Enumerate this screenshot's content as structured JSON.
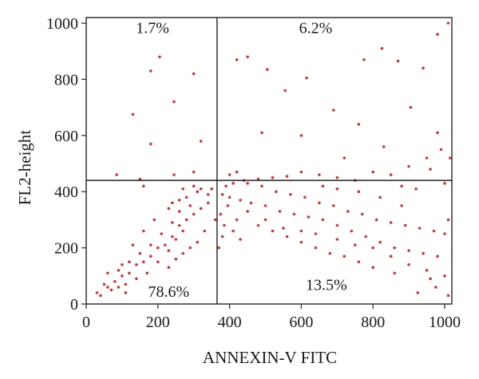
{
  "chart_data": {
    "type": "scatter",
    "title": "",
    "xlabel": "ANNEXIN-V FITC",
    "ylabel": "FL2-height",
    "xlim": [
      0,
      1020
    ],
    "ylim": [
      0,
      1020
    ],
    "xticks": [
      0,
      200,
      400,
      600,
      800,
      1000
    ],
    "yticks": [
      0,
      200,
      400,
      600,
      800,
      1000
    ],
    "gate": {
      "x": 365,
      "y": 440
    },
    "quadrants": [
      {
        "position": "top-left",
        "label": "1.7%",
        "x": 185,
        "y": 985
      },
      {
        "position": "top-right",
        "label": "6.2%",
        "x": 640,
        "y": 985
      },
      {
        "position": "bottom-left",
        "label": "78.6%",
        "x": 230,
        "y": 45
      },
      {
        "position": "bottom-right",
        "label": "13.5%",
        "x": 670,
        "y": 70
      }
    ],
    "grid": false,
    "point_color": "#c0161b",
    "points": [
      [
        205,
        880
      ],
      [
        180,
        830
      ],
      [
        245,
        720
      ],
      [
        130,
        675
      ],
      [
        85,
        460
      ],
      [
        150,
        445
      ],
      [
        160,
        420
      ],
      [
        180,
        570
      ],
      [
        320,
        580
      ],
      [
        300,
        820
      ],
      [
        450,
        880
      ],
      [
        505,
        835
      ],
      [
        555,
        760
      ],
      [
        615,
        805
      ],
      [
        775,
        870
      ],
      [
        825,
        910
      ],
      [
        870,
        865
      ],
      [
        940,
        840
      ],
      [
        980,
        960
      ],
      [
        1010,
        1000
      ],
      [
        420,
        870
      ],
      [
        690,
        690
      ],
      [
        760,
        640
      ],
      [
        905,
        700
      ],
      [
        830,
        560
      ],
      [
        980,
        610
      ],
      [
        1015,
        520
      ],
      [
        600,
        600
      ],
      [
        490,
        610
      ],
      [
        420,
        470
      ],
      [
        720,
        520
      ],
      [
        960,
        480
      ],
      [
        245,
        460
      ],
      [
        300,
        470
      ],
      [
        60,
        60
      ],
      [
        110,
        70
      ],
      [
        140,
        90
      ],
      [
        170,
        110
      ],
      [
        200,
        150
      ],
      [
        230,
        190
      ],
      [
        250,
        230
      ],
      [
        270,
        260
      ],
      [
        120,
        150
      ],
      [
        150,
        180
      ],
      [
        180,
        210
      ],
      [
        210,
        250
      ],
      [
        240,
        290
      ],
      [
        260,
        330
      ],
      [
        290,
        350
      ],
      [
        90,
        120
      ],
      [
        130,
        210
      ],
      [
        160,
        260
      ],
      [
        190,
        300
      ],
      [
        230,
        340
      ],
      [
        280,
        380
      ],
      [
        320,
        410
      ],
      [
        80,
        80
      ],
      [
        100,
        100
      ],
      [
        120,
        110
      ],
      [
        140,
        140
      ],
      [
        160,
        150
      ],
      [
        180,
        170
      ],
      [
        200,
        200
      ],
      [
        220,
        210
      ],
      [
        240,
        240
      ],
      [
        260,
        280
      ],
      [
        280,
        300
      ],
      [
        300,
        320
      ],
      [
        320,
        340
      ],
      [
        340,
        360
      ],
      [
        360,
        300
      ],
      [
        330,
        260
      ],
      [
        310,
        220
      ],
      [
        290,
        200
      ],
      [
        270,
        180
      ],
      [
        250,
        160
      ],
      [
        230,
        130
      ],
      [
        350,
        410
      ],
      [
        340,
        390
      ],
      [
        310,
        400
      ],
      [
        300,
        420
      ],
      [
        270,
        410
      ],
      [
        260,
        370
      ],
      [
        240,
        360
      ],
      [
        380,
        390
      ],
      [
        400,
        380
      ],
      [
        430,
        370
      ],
      [
        460,
        360
      ],
      [
        500,
        350
      ],
      [
        540,
        330
      ],
      [
        580,
        320
      ],
      [
        620,
        310
      ],
      [
        660,
        300
      ],
      [
        700,
        280
      ],
      [
        740,
        260
      ],
      [
        780,
        240
      ],
      [
        820,
        220
      ],
      [
        860,
        200
      ],
      [
        900,
        190
      ],
      [
        940,
        180
      ],
      [
        980,
        170
      ],
      [
        420,
        300
      ],
      [
        480,
        280
      ],
      [
        520,
        260
      ],
      [
        560,
        240
      ],
      [
        600,
        220
      ],
      [
        640,
        200
      ],
      [
        680,
        180
      ],
      [
        720,
        170
      ],
      [
        760,
        150
      ],
      [
        800,
        130
      ],
      [
        860,
        110
      ],
      [
        390,
        420
      ],
      [
        410,
        430
      ],
      [
        450,
        430
      ],
      [
        490,
        420
      ],
      [
        530,
        400
      ],
      [
        570,
        390
      ],
      [
        610,
        380
      ],
      [
        650,
        360
      ],
      [
        690,
        350
      ],
      [
        730,
        330
      ],
      [
        770,
        320
      ],
      [
        810,
        300
      ],
      [
        850,
        290
      ],
      [
        890,
        280
      ],
      [
        930,
        270
      ],
      [
        970,
        260
      ],
      [
        1000,
        250
      ],
      [
        450,
        330
      ],
      [
        500,
        300
      ],
      [
        550,
        270
      ],
      [
        600,
        260
      ],
      [
        640,
        250
      ],
      [
        700,
        230
      ],
      [
        750,
        210
      ],
      [
        800,
        200
      ],
      [
        850,
        170
      ],
      [
        900,
        140
      ],
      [
        950,
        120
      ],
      [
        600,
        470
      ],
      [
        650,
        460
      ],
      [
        700,
        450
      ],
      [
        750,
        440
      ],
      [
        800,
        470
      ],
      [
        850,
        460
      ],
      [
        900,
        490
      ],
      [
        950,
        520
      ],
      [
        990,
        550
      ],
      [
        560,
        455
      ],
      [
        520,
        450
      ],
      [
        480,
        445
      ],
      [
        440,
        440
      ],
      [
        400,
        460
      ],
      [
        30,
        40
      ],
      [
        40,
        30
      ],
      [
        50,
        70
      ],
      [
        70,
        50
      ],
      [
        60,
        110
      ],
      [
        90,
        60
      ],
      [
        100,
        140
      ],
      [
        110,
        40
      ],
      [
        370,
        200
      ],
      [
        380,
        240
      ],
      [
        385,
        280
      ],
      [
        375,
        320
      ],
      [
        395,
        350
      ],
      [
        410,
        260
      ],
      [
        430,
        230
      ],
      [
        925,
        40
      ],
      [
        975,
        60
      ],
      [
        1010,
        30
      ],
      [
        1000,
        100
      ],
      [
        960,
        90
      ],
      [
        820,
        380
      ],
      [
        880,
        350
      ],
      [
        660,
        420
      ],
      [
        700,
        410
      ],
      [
        760,
        400
      ],
      [
        880,
        420
      ],
      [
        920,
        410
      ],
      [
        1000,
        430
      ],
      [
        1010,
        300
      ]
    ]
  }
}
